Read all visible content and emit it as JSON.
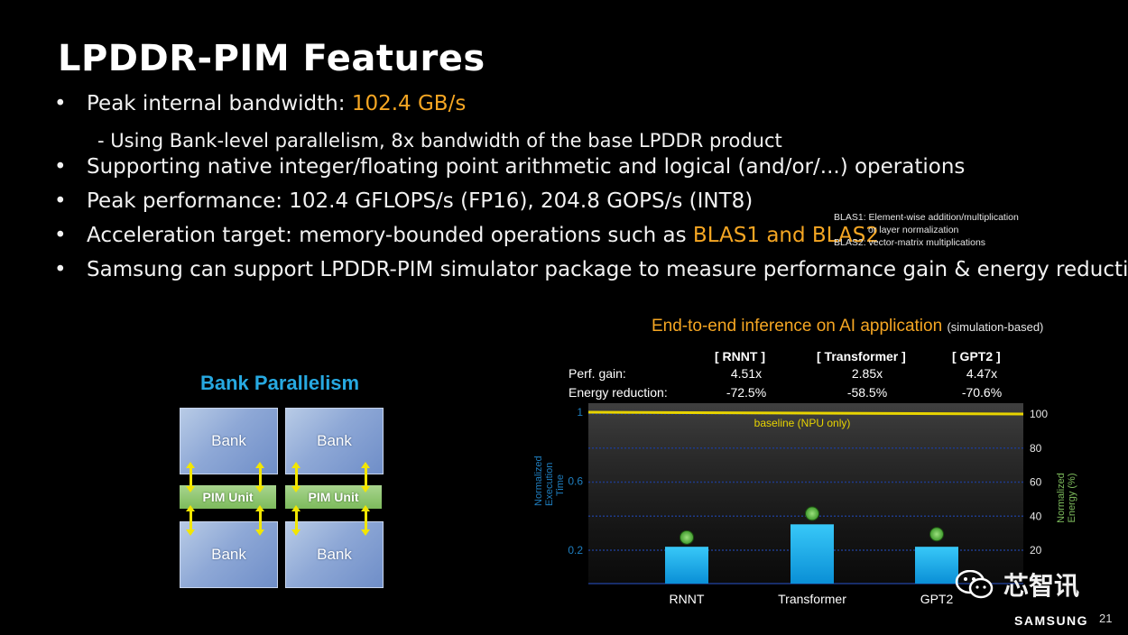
{
  "slide": {
    "title": "LPDDR-PIM Features",
    "bullets": [
      {
        "type": "bullet",
        "pre": "Peak internal bandwidth: ",
        "hl": "102.4 GB/s",
        "post": ""
      },
      {
        "type": "sub",
        "pre": "- Using Bank-level parallelism, 8x bandwidth of the base LPDDR product",
        "hl": "",
        "post": ""
      },
      {
        "type": "bullet",
        "pre": "Supporting native integer/floating point arithmetic and logical (and/or/...) operations",
        "hl": "",
        "post": ""
      },
      {
        "type": "bullet",
        "pre": "Peak performance: 102.4 GFLOPS/s (FP16), 204.8 GOPS/s (INT8)",
        "hl": "",
        "post": ""
      },
      {
        "type": "bullet",
        "pre": "Acceleration target: memory-bounded operations such as ",
        "hl": "BLAS1 and BLAS2",
        "post": ""
      },
      {
        "type": "bullet",
        "pre": "Samsung can support LPDDR-PIM simulator package to measure performance gain & energy reduction",
        "hl": "",
        "post": ""
      }
    ],
    "bullet_char": "•",
    "note": {
      "line1": "BLAS1: Element-wise addition/multiplication",
      "line2": "or layer normalization",
      "line3": "BLAS2: vector-matrix multiplications"
    },
    "highlight_color": "#f5a623"
  },
  "bank_diagram": {
    "title": "Bank Parallelism",
    "bank_label": "Bank",
    "pim_label": "PIM Unit",
    "title_color": "#27a9e1"
  },
  "chart_header": {
    "title": "End-to-end inference on AI application",
    "title_note": "(simulation-based)",
    "columns": [
      "[ RNNT ]",
      "[ Transformer ]",
      "[ GPT2 ]"
    ],
    "row_labels": [
      "Perf. gain:",
      "Energy reduction:"
    ],
    "perf_gain": [
      "4.51x",
      "2.85x",
      "4.47x"
    ],
    "energy_reduction": [
      "-72.5%",
      "-58.5%",
      "-70.6%"
    ]
  },
  "chart_data": {
    "type": "bar",
    "categories": [
      "RNNT",
      "Transformer",
      "GPT2"
    ],
    "series": [
      {
        "axis": "left",
        "values": [
          0.22,
          0.35,
          0.22
        ],
        "color": "#1fb6f0"
      },
      {
        "axis": "right",
        "values": [
          27.5,
          41.5,
          29.4
        ],
        "color": "#5cb848"
      }
    ],
    "baseline": {
      "label": "baseline (NPU only)",
      "value": 1,
      "color": "#e8d400"
    },
    "ylabel_left": "Normalized Execution Time",
    "ylabel_right": "Normalized Energy (%)",
    "ylim_left": [
      0,
      1
    ],
    "ylim_right": [
      0,
      105
    ],
    "yticks_left": [
      "1",
      "0.6",
      "0.2"
    ],
    "ytick_values_left": [
      1,
      0.6,
      0.2
    ],
    "yticks_right": [
      "100",
      "80",
      "60",
      "40",
      "20"
    ],
    "ytick_values_right": [
      100,
      80,
      60,
      40,
      20
    ]
  },
  "footer": {
    "brand": "SAMSUNG",
    "page": "21",
    "watermark": "芯智讯"
  }
}
